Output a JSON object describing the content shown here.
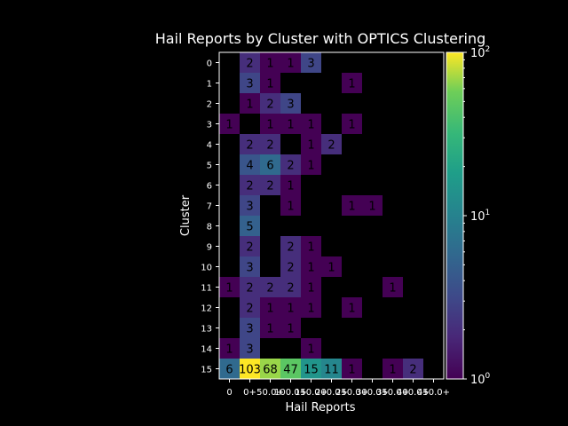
{
  "chart_data": {
    "type": "heatmap",
    "title": "Hail Reports by Cluster with OPTICS Clustering",
    "xlabel": "Hail Reports",
    "ylabel": "Cluster",
    "x_categories": [
      "0",
      "0+",
      "50.0+",
      "100.0+",
      "150.0+",
      "200.0+",
      "250.0+",
      "300.0+",
      "350.0+",
      "400.0+",
      "450.0+"
    ],
    "y_categories": [
      "0",
      "1",
      "2",
      "3",
      "4",
      "5",
      "6",
      "7",
      "8",
      "9",
      "10",
      "11",
      "12",
      "13",
      "14",
      "15"
    ],
    "values": [
      [
        null,
        2,
        1,
        1,
        3,
        null,
        null,
        null,
        null,
        null,
        null
      ],
      [
        null,
        3,
        1,
        null,
        null,
        null,
        1,
        null,
        null,
        null,
        null
      ],
      [
        null,
        1,
        2,
        3,
        null,
        null,
        null,
        null,
        null,
        null,
        null
      ],
      [
        1,
        null,
        1,
        1,
        1,
        null,
        1,
        null,
        null,
        null,
        null
      ],
      [
        null,
        2,
        2,
        null,
        1,
        2,
        null,
        null,
        null,
        null,
        null
      ],
      [
        null,
        4,
        6,
        2,
        1,
        null,
        null,
        null,
        null,
        null,
        null
      ],
      [
        null,
        2,
        2,
        1,
        null,
        null,
        null,
        null,
        null,
        null,
        null
      ],
      [
        null,
        3,
        null,
        1,
        null,
        null,
        1,
        1,
        null,
        null,
        null
      ],
      [
        null,
        5,
        null,
        null,
        null,
        null,
        null,
        null,
        null,
        null,
        null
      ],
      [
        null,
        2,
        null,
        2,
        1,
        null,
        null,
        null,
        null,
        null,
        null
      ],
      [
        null,
        3,
        null,
        2,
        1,
        1,
        null,
        null,
        null,
        null,
        null
      ],
      [
        1,
        2,
        2,
        2,
        1,
        null,
        null,
        null,
        1,
        null,
        null
      ],
      [
        null,
        2,
        1,
        1,
        1,
        null,
        1,
        null,
        null,
        null,
        null
      ],
      [
        null,
        3,
        1,
        1,
        null,
        null,
        null,
        null,
        null,
        null,
        null
      ],
      [
        1,
        3,
        null,
        null,
        1,
        null,
        null,
        null,
        null,
        null,
        null
      ],
      [
        6,
        103,
        68,
        47,
        15,
        11,
        1,
        null,
        1,
        2,
        null
      ]
    ],
    "colorbar": {
      "scale": "log",
      "min": 1,
      "max": 100,
      "ticks": [
        {
          "value": 1,
          "base": "10",
          "exp": "0"
        },
        {
          "value": 10,
          "base": "10",
          "exp": "1"
        },
        {
          "value": 100,
          "base": "10",
          "exp": "2"
        }
      ],
      "colormap": "viridis"
    },
    "background": "#000000",
    "text_color": "#ffffff"
  }
}
